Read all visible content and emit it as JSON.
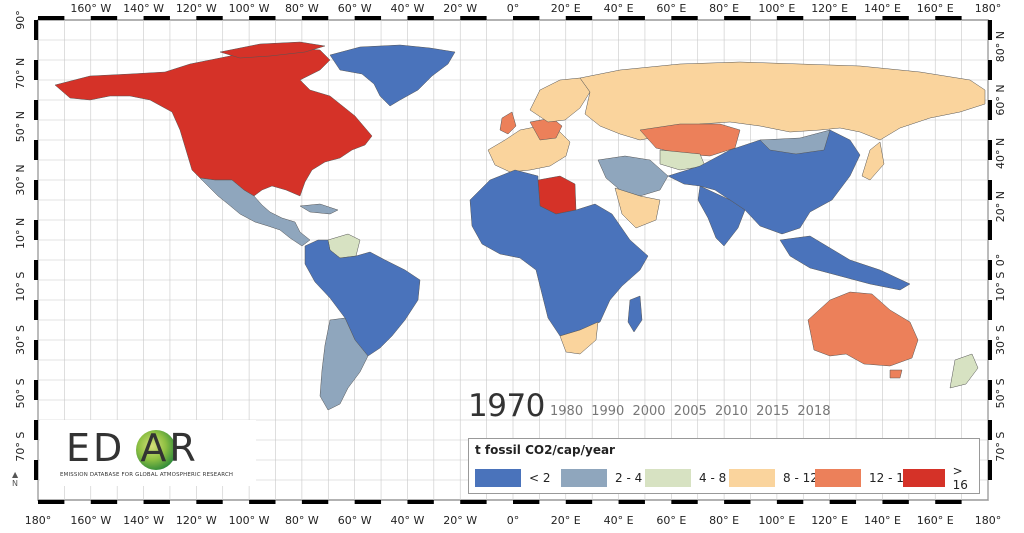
{
  "colors": {
    "ocean": "#ffffff",
    "grid": "#c8c8c8",
    "lt2": "#4a73bb",
    "2to4": "#8fa6bd",
    "4to8": "#d7e2c2",
    "8to12": "#fad49d",
    "12to16": "#ec805a",
    "gt16": "#d53228",
    "border": "#555555"
  },
  "axes": {
    "top_labels": [
      "160° W",
      "140° W",
      "120° W",
      "100° W",
      "80° W",
      "60° W",
      "40° W",
      "20° W",
      "0°",
      "20° E",
      "40° E",
      "60° E",
      "80° E",
      "100° E",
      "120° E",
      "140° E",
      "160° E",
      "180°"
    ],
    "bottom_labels": [
      "180°",
      "160° W",
      "140° W",
      "120° W",
      "100° W",
      "80° W",
      "60° W",
      "40° W",
      "20° W",
      "0°",
      "20° E",
      "40° E",
      "60° E",
      "80° E",
      "100° E",
      "120° E",
      "140° E",
      "160° E",
      "180°"
    ],
    "left_labels": [
      "90°",
      "70° N",
      "50° N",
      "30° N",
      "10° N",
      "10° S",
      "30° S",
      "50° S",
      "70° S"
    ],
    "right_labels": [
      "80° N",
      "60° N",
      "40° N",
      "20° N",
      "0°",
      "10° S",
      "30° S",
      "50° S",
      "70° S"
    ]
  },
  "year": {
    "current": "1970",
    "others": [
      "1980",
      "1990",
      "2000",
      "2005",
      "2010",
      "2015",
      "2018"
    ]
  },
  "logo": {
    "letters": "ED  AR",
    "subtitle": "EMISSION DATABASE FOR GLOBAL ATMOSPHERIC RESEARCH"
  },
  "north": "N",
  "legend": {
    "title": "t fossil CO2/cap/year",
    "items": [
      {
        "label": "< 2",
        "color": "#4a73bb"
      },
      {
        "label": "2 - 4",
        "color": "#8fa6bd"
      },
      {
        "label": "4 - 8",
        "color": "#d7e2c2"
      },
      {
        "label": "8 - 12",
        "color": "#fad49d"
      },
      {
        "label": "12 - 16",
        "color": "#ec805a"
      },
      {
        "label": "> 16",
        "color": "#d53228"
      }
    ]
  }
}
